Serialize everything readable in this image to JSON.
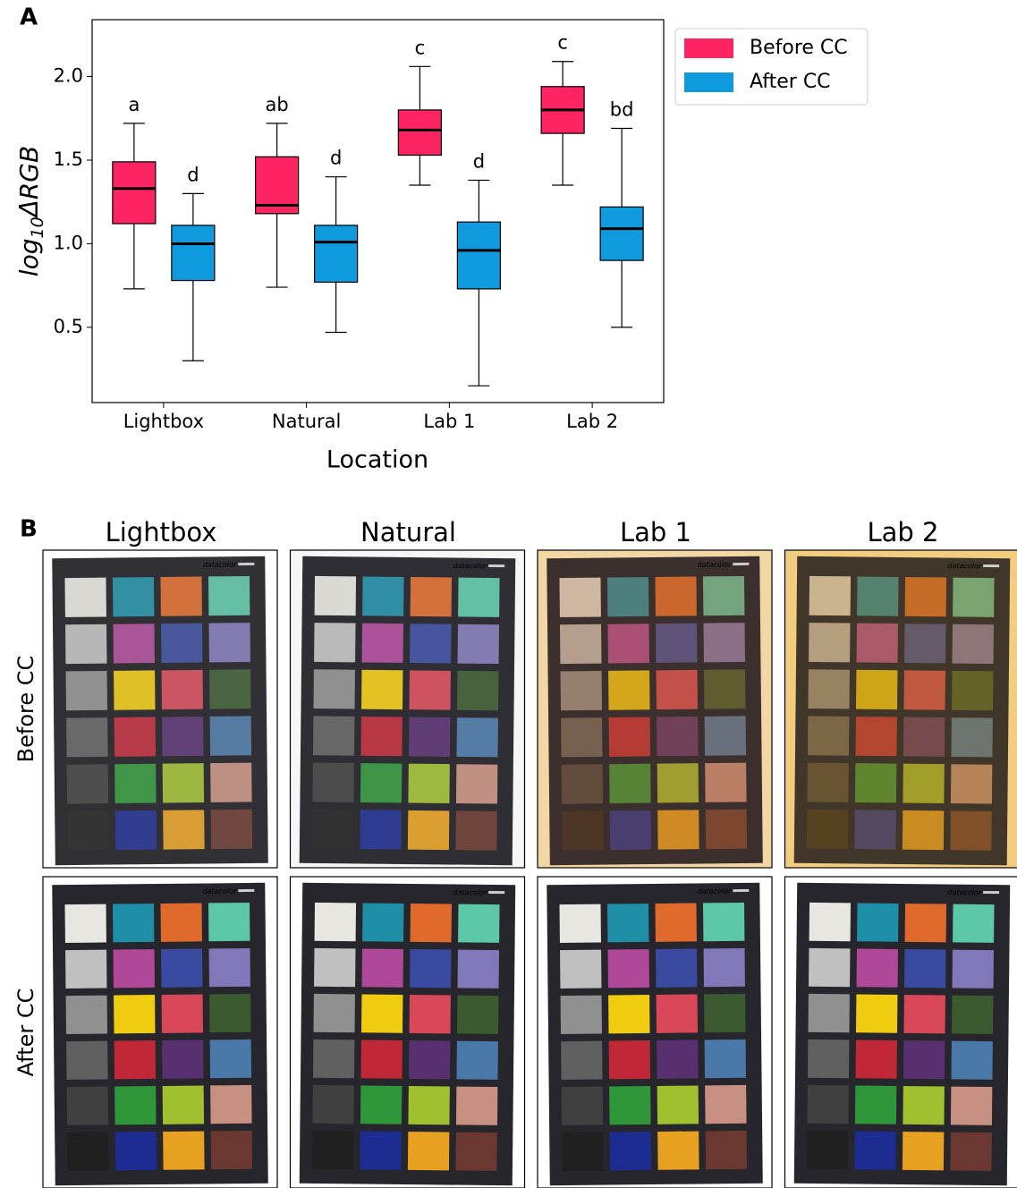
{
  "chart_data": {
    "type": "box",
    "panel_label": "A",
    "x_label": "Location",
    "y_label_parts": [
      "log",
      "10",
      "ΔRGB"
    ],
    "categories": [
      "Lightbox",
      "Natural",
      "Lab 1",
      "Lab 2"
    ],
    "ylim": [
      0.05,
      2.34
    ],
    "yticks": [
      0.5,
      {
        "value": 1,
        "label": "1.0"
      },
      1.5,
      {
        "value": 2,
        "label": "2.0"
      }
    ],
    "legend": "outside-upper-right",
    "series": [
      {
        "name": "Before CC",
        "color": "#fd2461",
        "min": [
          0.73,
          0.74,
          1.35,
          1.35
        ],
        "q1": [
          1.12,
          1.18,
          1.53,
          1.66
        ],
        "median": [
          1.33,
          1.23,
          1.68,
          1.8
        ],
        "q3": [
          1.49,
          1.52,
          1.8,
          1.94
        ],
        "max": [
          1.72,
          1.72,
          2.06,
          2.09
        ],
        "annotations": [
          "a",
          "ab",
          "c",
          "c"
        ]
      },
      {
        "name": "After CC",
        "color": "#0f9ade",
        "min": [
          0.3,
          0.47,
          0.15,
          0.5
        ],
        "q1": [
          0.78,
          0.77,
          0.73,
          0.9
        ],
        "median": [
          1.0,
          1.01,
          0.96,
          1.09
        ],
        "q3": [
          1.11,
          1.11,
          1.13,
          1.22
        ],
        "max": [
          1.3,
          1.4,
          1.38,
          1.69
        ],
        "annotations": [
          "d",
          "d",
          "d",
          "bd"
        ]
      }
    ]
  },
  "photo_panel": {
    "panel_label": "B",
    "columns": [
      "Lightbox",
      "Natural",
      "Lab 1",
      "Lab 2"
    ],
    "rows": [
      "Before CC",
      "After CC"
    ],
    "brand": "datacolor"
  }
}
